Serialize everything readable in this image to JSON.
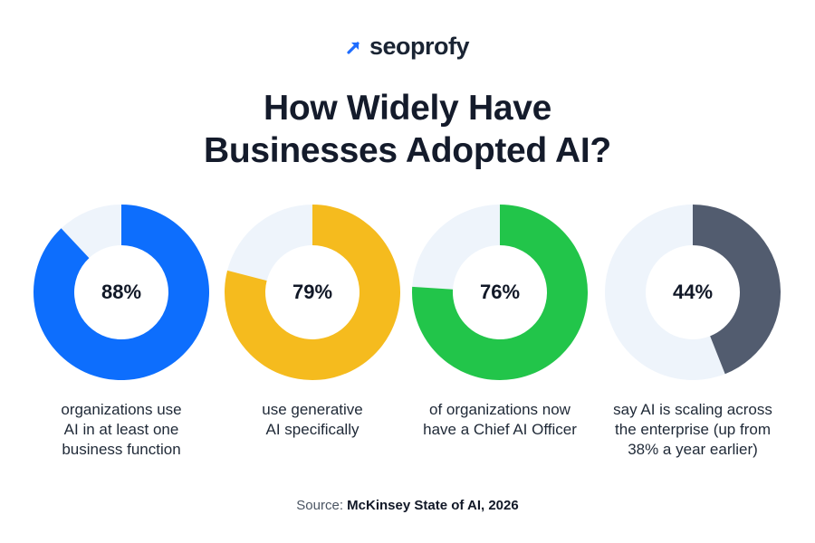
{
  "brand": {
    "name": "seoprofy",
    "accent": "#1f6dff"
  },
  "title_lines": [
    "How Widely Have",
    "Businesses Adopted AI?"
  ],
  "source": {
    "label": "Source:",
    "value": "McKinsey State of AI, 2026"
  },
  "chart_data": {
    "type": "pie",
    "track_color": "#eef4fb",
    "items": [
      {
        "value": 88,
        "label": "88%",
        "color": "#0d6efd",
        "caption": [
          "organizations use",
          "AI in at least one",
          "business function"
        ]
      },
      {
        "value": 79,
        "label": "79%",
        "color": "#f5bb1e",
        "caption": [
          "use generative",
          "AI specifically"
        ]
      },
      {
        "value": 76,
        "label": "76%",
        "color": "#22c54a",
        "caption": [
          "of organizations now",
          "have a Chief AI Officer"
        ]
      },
      {
        "value": 44,
        "label": "44%",
        "color": "#525c6f",
        "caption": [
          "say AI is scaling across",
          "the enterprise (up from",
          "38% a year earlier)"
        ]
      }
    ]
  }
}
